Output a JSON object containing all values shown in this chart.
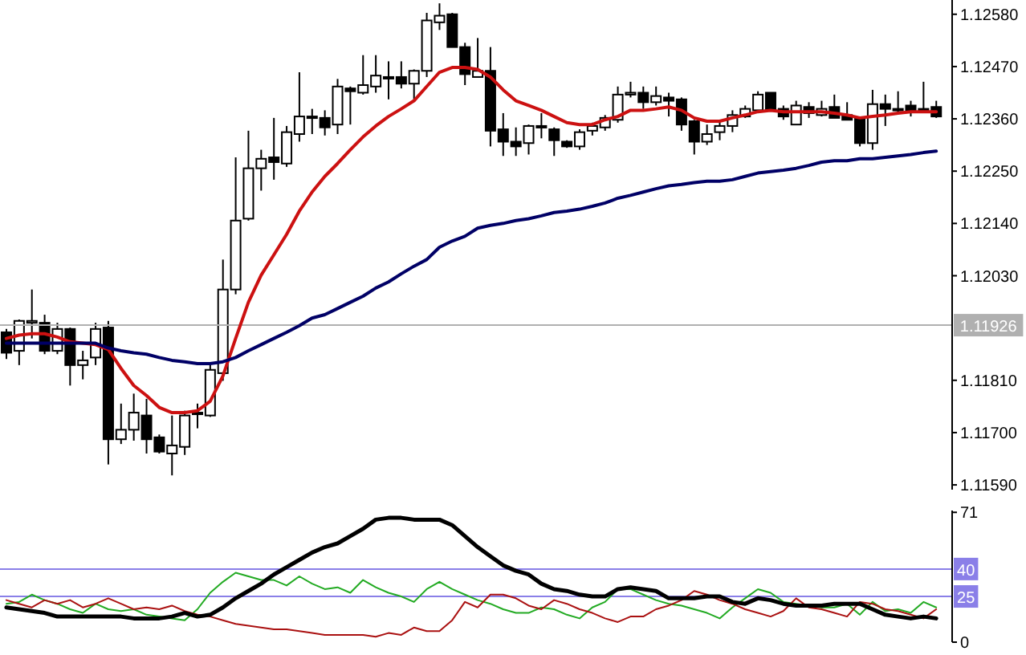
{
  "chart_data": [
    {
      "type": "candlestick",
      "tick_labels": "y",
      "grid": false,
      "categories": [
        null,
        null,
        null,
        null,
        null,
        null,
        null,
        null,
        null,
        null,
        null,
        null,
        null,
        null,
        null,
        null,
        null,
        null,
        null,
        null,
        null,
        null,
        null,
        null,
        null,
        null,
        null,
        null,
        null,
        null,
        null,
        null,
        null,
        null,
        null,
        null,
        null,
        null,
        null,
        null,
        null,
        null,
        null,
        null,
        null,
        null,
        null,
        null,
        null,
        null,
        null,
        null,
        null,
        null,
        null,
        null,
        null,
        null,
        null,
        null,
        null,
        null,
        null,
        null,
        null,
        null,
        null,
        null,
        null,
        null,
        null,
        null,
        null,
        null
      ],
      "ohlc": [
        [
          1.11911,
          1.11918,
          1.11855,
          1.11868
        ],
        [
          1.11872,
          1.11938,
          1.11842,
          1.11935
        ],
        [
          1.11931,
          1.12001,
          1.11898,
          1.11935
        ],
        [
          1.11931,
          1.11948,
          1.11865,
          1.11872
        ],
        [
          1.11872,
          1.11931,
          1.11865,
          1.11918
        ],
        [
          1.11918,
          1.11921,
          1.11799,
          1.11842
        ],
        [
          1.11842,
          1.11872,
          1.11812,
          1.11852
        ],
        [
          1.11858,
          1.11931,
          1.11842,
          1.11918
        ],
        [
          1.11921,
          1.11935,
          1.11633,
          1.11686
        ],
        [
          1.11686,
          1.11761,
          1.11676,
          1.11706
        ],
        [
          1.11706,
          1.11782,
          1.11683,
          1.11742
        ],
        [
          1.11736,
          1.11771,
          1.11656,
          1.11686
        ],
        [
          1.1169,
          1.11696,
          1.11656,
          1.1166
        ],
        [
          1.11656,
          1.11736,
          1.1161,
          1.11673
        ],
        [
          1.1167,
          1.11746,
          1.11653,
          1.11736
        ],
        [
          1.11742,
          1.11761,
          1.11709,
          1.11739
        ],
        [
          1.11736,
          1.11842,
          1.11733,
          1.11832
        ],
        [
          1.11825,
          1.12064,
          1.11809,
          1.12001
        ],
        [
          1.12001,
          1.12279,
          1.11991,
          1.12146
        ],
        [
          1.1215,
          1.12335,
          1.12146,
          1.12256
        ],
        [
          1.12256,
          1.12295,
          1.12209,
          1.12276
        ],
        [
          1.12279,
          1.12362,
          1.12232,
          1.12269
        ],
        [
          1.12266,
          1.12345,
          1.12259,
          1.12332
        ],
        [
          1.12328,
          1.12458,
          1.12312,
          1.12365
        ],
        [
          1.12365,
          1.12381,
          1.12328,
          1.12362
        ],
        [
          1.12362,
          1.12378,
          1.12325,
          1.12342
        ],
        [
          1.12348,
          1.12444,
          1.12328,
          1.12428
        ],
        [
          1.12424,
          1.12428,
          1.12348,
          1.12418
        ],
        [
          1.12415,
          1.12494,
          1.12411,
          1.12431
        ],
        [
          1.12428,
          1.12494,
          1.12415,
          1.12451
        ],
        [
          1.12448,
          1.12481,
          1.12401,
          1.12448
        ],
        [
          1.12448,
          1.12481,
          1.12424,
          1.12434
        ],
        [
          1.12434,
          1.12464,
          1.12401,
          1.12461
        ],
        [
          1.12461,
          1.12583,
          1.12448,
          1.12567
        ],
        [
          1.12563,
          1.12603,
          1.12547,
          1.12577
        ],
        [
          1.1258,
          1.12583,
          1.12511,
          1.12511
        ],
        [
          1.12511,
          1.1252,
          1.12431,
          1.12454
        ],
        [
          1.12448,
          1.1253,
          1.12448,
          1.12461
        ],
        [
          1.12461,
          1.12511,
          1.12302,
          1.12335
        ],
        [
          1.12338,
          1.12372,
          1.12282,
          1.12312
        ],
        [
          1.12312,
          1.12342,
          1.12282,
          1.12302
        ],
        [
          1.12309,
          1.12348,
          1.12285,
          1.12345
        ],
        [
          1.12345,
          1.12372,
          1.12319,
          1.12342
        ],
        [
          1.12338,
          1.12342,
          1.12282,
          1.12315
        ],
        [
          1.12312,
          1.12315,
          1.12299,
          1.12302
        ],
        [
          1.12302,
          1.12338,
          1.12295,
          1.12332
        ],
        [
          1.12335,
          1.12352,
          1.12325,
          1.12345
        ],
        [
          1.12342,
          1.12368,
          1.12335,
          1.12362
        ],
        [
          1.12358,
          1.12428,
          1.12352,
          1.12411
        ],
        [
          1.12411,
          1.12438,
          1.12405,
          1.12415
        ],
        [
          1.12415,
          1.12428,
          1.12381,
          1.12395
        ],
        [
          1.12395,
          1.12428,
          1.12388,
          1.12408
        ],
        [
          1.12405,
          1.12415,
          1.12365,
          1.12398
        ],
        [
          1.12401,
          1.12405,
          1.12335,
          1.12348
        ],
        [
          1.12355,
          1.12358,
          1.12285,
          1.12312
        ],
        [
          1.12312,
          1.12348,
          1.12305,
          1.12328
        ],
        [
          1.12332,
          1.12358,
          1.12315,
          1.12345
        ],
        [
          1.12345,
          1.12378,
          1.12332,
          1.12368
        ],
        [
          1.12365,
          1.12388,
          1.12362,
          1.12381
        ],
        [
          1.12378,
          1.12418,
          1.12378,
          1.12411
        ],
        [
          1.12415,
          1.12415,
          1.12378,
          1.12378
        ],
        [
          1.12381,
          1.12388,
          1.12358,
          1.12365
        ],
        [
          1.12348,
          1.12398,
          1.12348,
          1.12388
        ],
        [
          1.12385,
          1.12395,
          1.12362,
          1.12372
        ],
        [
          1.12368,
          1.12398,
          1.12365,
          1.12381
        ],
        [
          1.12385,
          1.12411,
          1.12362,
          1.12362
        ],
        [
          1.12368,
          1.12395,
          1.12358,
          1.12358
        ],
        [
          1.12362,
          1.12365,
          1.12302,
          1.12309
        ],
        [
          1.12309,
          1.12421,
          1.12295,
          1.12391
        ],
        [
          1.12391,
          1.12411,
          1.12345,
          1.12381
        ],
        [
          1.12381,
          1.12418,
          1.12372,
          1.12381
        ],
        [
          1.12388,
          1.12398,
          1.12365,
          1.12378
        ],
        [
          1.12381,
          1.12438,
          1.12372,
          1.12381
        ],
        [
          1.12385,
          1.12398,
          1.12362,
          1.12365
        ]
      ],
      "series": [
        {
          "type": "line",
          "color": "#cc1111",
          "values": [
            1.11898,
            1.11905,
            1.11908,
            1.11908,
            1.11901,
            1.11891,
            1.11888,
            1.11885,
            1.11875,
            1.11835,
            1.11799,
            1.11778,
            1.11753,
            1.11742,
            1.11742,
            1.11746,
            1.11766,
            1.11819,
            1.11898,
            1.11974,
            1.12031,
            1.12074,
            1.12117,
            1.12166,
            1.12206,
            1.12239,
            1.12266,
            1.12295,
            1.12322,
            1.12345,
            1.12365,
            1.12381,
            1.12398,
            1.12428,
            1.12458,
            1.12468,
            1.12468,
            1.12464,
            1.12448,
            1.12421,
            1.12398,
            1.12388,
            1.12378,
            1.12365,
            1.12352,
            1.12348,
            1.12348,
            1.12358,
            1.12365,
            1.12378,
            1.12378,
            1.12381,
            1.12385,
            1.12378,
            1.12362,
            1.12355,
            1.12355,
            1.12362,
            1.12368,
            1.12375,
            1.12378,
            1.12375,
            1.12375,
            1.12375,
            1.12375,
            1.12372,
            1.12368,
            1.12362,
            1.12365,
            1.12368,
            1.12372,
            1.12375,
            1.12375,
            1.12375
          ]
        },
        {
          "type": "line",
          "color": "#000066",
          "values": [
            1.11888,
            1.11888,
            1.11888,
            1.11888,
            1.11888,
            1.11888,
            1.11888,
            1.11888,
            1.11878,
            1.11872,
            1.11868,
            1.11865,
            1.11858,
            1.11852,
            1.11849,
            1.11845,
            1.11845,
            1.11849,
            1.11858,
            1.11872,
            1.11885,
            1.11898,
            1.11911,
            1.11925,
            1.11941,
            1.11948,
            1.11961,
            1.11974,
            1.11987,
            1.12004,
            1.12017,
            1.12034,
            1.1205,
            1.12064,
            1.1209,
            1.12103,
            1.12113,
            1.1213,
            1.12136,
            1.1214,
            1.12146,
            1.1215,
            1.12156,
            1.12163,
            1.12166,
            1.1217,
            1.12176,
            1.12183,
            1.12193,
            1.12199,
            1.12206,
            1.12213,
            1.12219,
            1.12222,
            1.12226,
            1.12229,
            1.12229,
            1.12232,
            1.12239,
            1.12246,
            1.12249,
            1.12252,
            1.12256,
            1.12262,
            1.12269,
            1.12272,
            1.12272,
            1.12276,
            1.12276,
            1.12279,
            1.12282,
            1.12285,
            1.12289,
            1.12292
          ]
        }
      ],
      "ylim": [
        1.1158,
        1.1261
      ],
      "yticks": [
        {
          "value": 1.1258,
          "label": "1.12580"
        },
        {
          "value": 1.1247,
          "label": "1.12470"
        },
        {
          "value": 1.1236,
          "label": "1.12360"
        },
        {
          "value": 1.1225,
          "label": "1.12250"
        },
        {
          "value": 1.1214,
          "label": "1.12140"
        },
        {
          "value": 1.1203,
          "label": "1.12030"
        },
        {
          "value": 1.1181,
          "label": "1.11810"
        },
        {
          "value": 1.117,
          "label": "1.11700"
        },
        {
          "value": 1.1159,
          "label": "1.11590"
        }
      ],
      "ref_lines": [
        {
          "axis": "y",
          "value": 1.11926,
          "label": "1.11926",
          "color": "#b0b0b0"
        }
      ]
    },
    {
      "type": "line",
      "tick_labels": "y",
      "grid": false,
      "categories": [
        null,
        null,
        null,
        null,
        null,
        null,
        null,
        null,
        null,
        null,
        null,
        null,
        null,
        null,
        null,
        null,
        null,
        null,
        null,
        null,
        null,
        null,
        null,
        null,
        null,
        null,
        null,
        null,
        null,
        null,
        null,
        null,
        null,
        null,
        null,
        null,
        null,
        null,
        null,
        null,
        null,
        null,
        null,
        null,
        null,
        null,
        null,
        null,
        null,
        null,
        null,
        null,
        null,
        null,
        null,
        null,
        null,
        null,
        null,
        null,
        null,
        null,
        null,
        null,
        null,
        null,
        null,
        null,
        null,
        null,
        null,
        null,
        null,
        null
      ],
      "series": [
        {
          "color": "#22aa22",
          "values": [
            21,
            22,
            26,
            23,
            21,
            18,
            16,
            21,
            18,
            17,
            18,
            15,
            14,
            13,
            12,
            18,
            27,
            33,
            38,
            36,
            34,
            34,
            31,
            36,
            32,
            29,
            30,
            27,
            34,
            30,
            27,
            25,
            22,
            29,
            33,
            29,
            26,
            23,
            21,
            18,
            16,
            16,
            19,
            18,
            15,
            13,
            19,
            22,
            29,
            29,
            26,
            23,
            21,
            20,
            18,
            16,
            13,
            19,
            24,
            29,
            27,
            22,
            21,
            20,
            19,
            19,
            21,
            15,
            22,
            17,
            18,
            16,
            22,
            19
          ]
        },
        {
          "color": "#aa1111",
          "values": [
            23,
            21,
            19,
            23,
            21,
            23,
            19,
            21,
            24,
            21,
            18,
            19,
            18,
            20,
            17,
            15,
            14,
            12,
            10,
            9,
            8,
            7,
            7,
            6,
            5,
            4,
            4,
            4,
            4,
            3,
            5,
            4,
            8,
            6,
            6,
            12,
            22,
            19,
            26,
            26,
            24,
            20,
            18,
            23,
            21,
            18,
            16,
            13,
            11,
            14,
            14,
            18,
            20,
            23,
            28,
            26,
            23,
            21,
            18,
            16,
            14,
            17,
            24,
            19,
            18,
            16,
            14,
            22,
            21,
            18,
            17,
            15,
            13,
            18
          ]
        },
        {
          "color": "#000000",
          "values": [
            19,
            18,
            17,
            16,
            14,
            14,
            14,
            14,
            14,
            14,
            13,
            13,
            13,
            14,
            16,
            14,
            15,
            19,
            24,
            28,
            32,
            37,
            41,
            45,
            49,
            52,
            54,
            58,
            62,
            67,
            68,
            68,
            67,
            67,
            67,
            64,
            58,
            52,
            47,
            42,
            39,
            37,
            32,
            29,
            28,
            26,
            25,
            25,
            29,
            30,
            29,
            28,
            24,
            24,
            24,
            25,
            25,
            22,
            21,
            24,
            23,
            21,
            20,
            20,
            20,
            21,
            21,
            21,
            18,
            15,
            14,
            13,
            14,
            13
          ]
        }
      ],
      "ylim": [
        0,
        72
      ],
      "yticks": [
        0,
        71
      ],
      "ref_lines": [
        {
          "axis": "y",
          "value": 40,
          "label": "40",
          "color": "#8a7fe8"
        },
        {
          "axis": "y",
          "value": 25,
          "label": "25",
          "color": "#8a7fe8"
        }
      ]
    }
  ]
}
